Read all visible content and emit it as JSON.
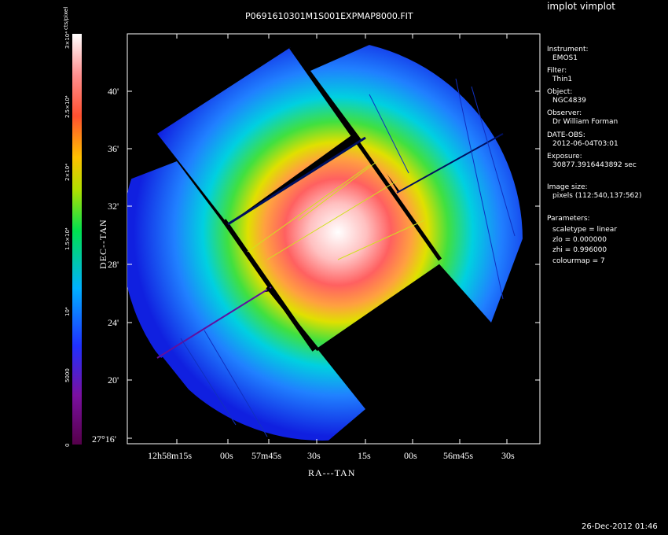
{
  "header": {
    "app_title": "implot vimplot",
    "file_title": "P0691610301M1S001EXPMAP8000.FIT"
  },
  "colorbar": {
    "unit_label": "cts/pixel",
    "tick_labels": [
      "3×10⁴",
      "2.5×10⁴",
      "2×10⁴",
      "1.5×10⁴",
      "10⁴",
      "5000",
      "0"
    ],
    "colors": [
      "#000000",
      "#6a0a7a",
      "#2020ff",
      "#00c0ff",
      "#00e000",
      "#e0e000",
      "#ff8000",
      "#ff4040",
      "#ffa0a0",
      "#ffffff"
    ]
  },
  "axes": {
    "xlabel": "RA---TAN",
    "ylabel": "DEC--TAN",
    "y_ticks": [
      "40'",
      "36'",
      "32'",
      "28'",
      "24'",
      "20'",
      "27°16'"
    ],
    "x_ticks": [
      "12h58m15s",
      "00s",
      "57m45s",
      "30s",
      "15s",
      "00s",
      "56m45s",
      "30s"
    ]
  },
  "info": {
    "instrument_label": "Instrument:",
    "instrument": "EMOS1",
    "filter_label": "Filter:",
    "filter": "Thin1",
    "object_label": "Object:",
    "object": "NGC4839",
    "observer_label": "Observer:",
    "observer": "Dr William Forman",
    "date_label": "DATE-OBS:",
    "date": "2012-06-04T03:01",
    "exposure_label": "Exposure:",
    "exposure": "30877.3916443892 sec",
    "image_size_label": "Image size:",
    "image_size": "pixels (112:540,137:562)",
    "params_label": "Parameters:",
    "scaletype": "scaletype = linear",
    "zlo": "zlo = 0.000000",
    "zhi": "zhi = 0.996000",
    "colourmap": "colourmap =   7"
  },
  "footer": {
    "timestamp": "26-Dec-2012 01:46"
  }
}
